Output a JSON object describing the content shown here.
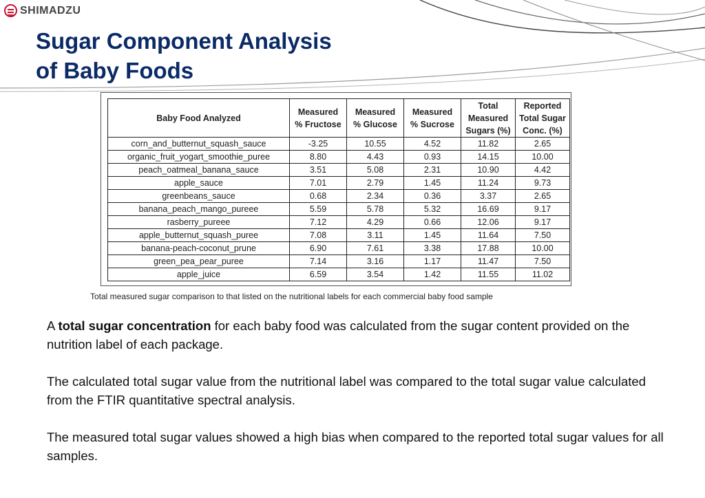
{
  "brand": {
    "logo_text": "SHIMADZU",
    "logo_icon": "shimadzu-logo-icon"
  },
  "slide": {
    "title_line1": "Sugar Component Analysis",
    "title_line2": "of Baby Foods"
  },
  "table": {
    "headers": {
      "name": "Baby Food Analyzed",
      "fructose_l1": "Measured",
      "fructose_l2": "% Fructose",
      "glucose_l1": "Measured",
      "glucose_l2": "% Glucose",
      "sucrose_l1": "Measured",
      "sucrose_l2": "% Sucrose",
      "total_l1": "Total",
      "total_l2": "Measured",
      "total_l3": "Sugars (%)",
      "reported_l1": "Reported",
      "reported_l2": "Total Sugar",
      "reported_l3": "Conc. (%)"
    },
    "rows": [
      {
        "name": "corn_and_butternut_squash_sauce",
        "fructose": "-3.25",
        "glucose": "10.55",
        "sucrose": "4.52",
        "total": "11.82",
        "reported": "2.65"
      },
      {
        "name": "organic_fruit_yogart_smoothie_puree",
        "fructose": "8.80",
        "glucose": "4.43",
        "sucrose": "0.93",
        "total": "14.15",
        "reported": "10.00"
      },
      {
        "name": "peach_oatmeal_banana_sauce",
        "fructose": "3.51",
        "glucose": "5.08",
        "sucrose": "2.31",
        "total": "10.90",
        "reported": "4.42"
      },
      {
        "name": "apple_sauce",
        "fructose": "7.01",
        "glucose": "2.79",
        "sucrose": "1.45",
        "total": "11.24",
        "reported": "9.73"
      },
      {
        "name": "greenbeans_sauce",
        "fructose": "0.68",
        "glucose": "2.34",
        "sucrose": "0.36",
        "total": "3.37",
        "reported": "2.65"
      },
      {
        "name": "banana_peach_mango_pureee",
        "fructose": "5.59",
        "glucose": "5.78",
        "sucrose": "5.32",
        "total": "16.69",
        "reported": "9.17"
      },
      {
        "name": "rasberry_pureee",
        "fructose": "7.12",
        "glucose": "4.29",
        "sucrose": "0.66",
        "total": "12.06",
        "reported": "9.17"
      },
      {
        "name": "apple_butternut_squash_puree",
        "fructose": "7.08",
        "glucose": "3.11",
        "sucrose": "1.45",
        "total": "11.64",
        "reported": "7.50"
      },
      {
        "name": "banana-peach-coconut_prune",
        "fructose": "6.90",
        "glucose": "7.61",
        "sucrose": "3.38",
        "total": "17.88",
        "reported": "10.00"
      },
      {
        "name": "green_pea_pear_puree",
        "fructose": "7.14",
        "glucose": "3.16",
        "sucrose": "1.17",
        "total": "11.47",
        "reported": "7.50"
      },
      {
        "name": "apple_juice",
        "fructose": "6.59",
        "glucose": "3.54",
        "sucrose": "1.42",
        "total": "11.55",
        "reported": "11.02"
      }
    ]
  },
  "caption": "Total measured sugar comparison to that listed on the nutritional labels for each commercial baby food sample",
  "body": {
    "p1_prefix": "A ",
    "p1_bold": "total sugar concentration",
    "p1_rest": " for each baby food was calculated from the sugar content provided on the nutrition label of each package.",
    "p2": "The calculated total sugar value from the nutritional label was compared to the total sugar value calculated from the FTIR quantitative spectral analysis.",
    "p3": "The measured total sugar values showed a high bias when compared to the reported total sugar values for all samples."
  },
  "colors": {
    "title": "#0b2a66",
    "logo": "#c8102e"
  }
}
